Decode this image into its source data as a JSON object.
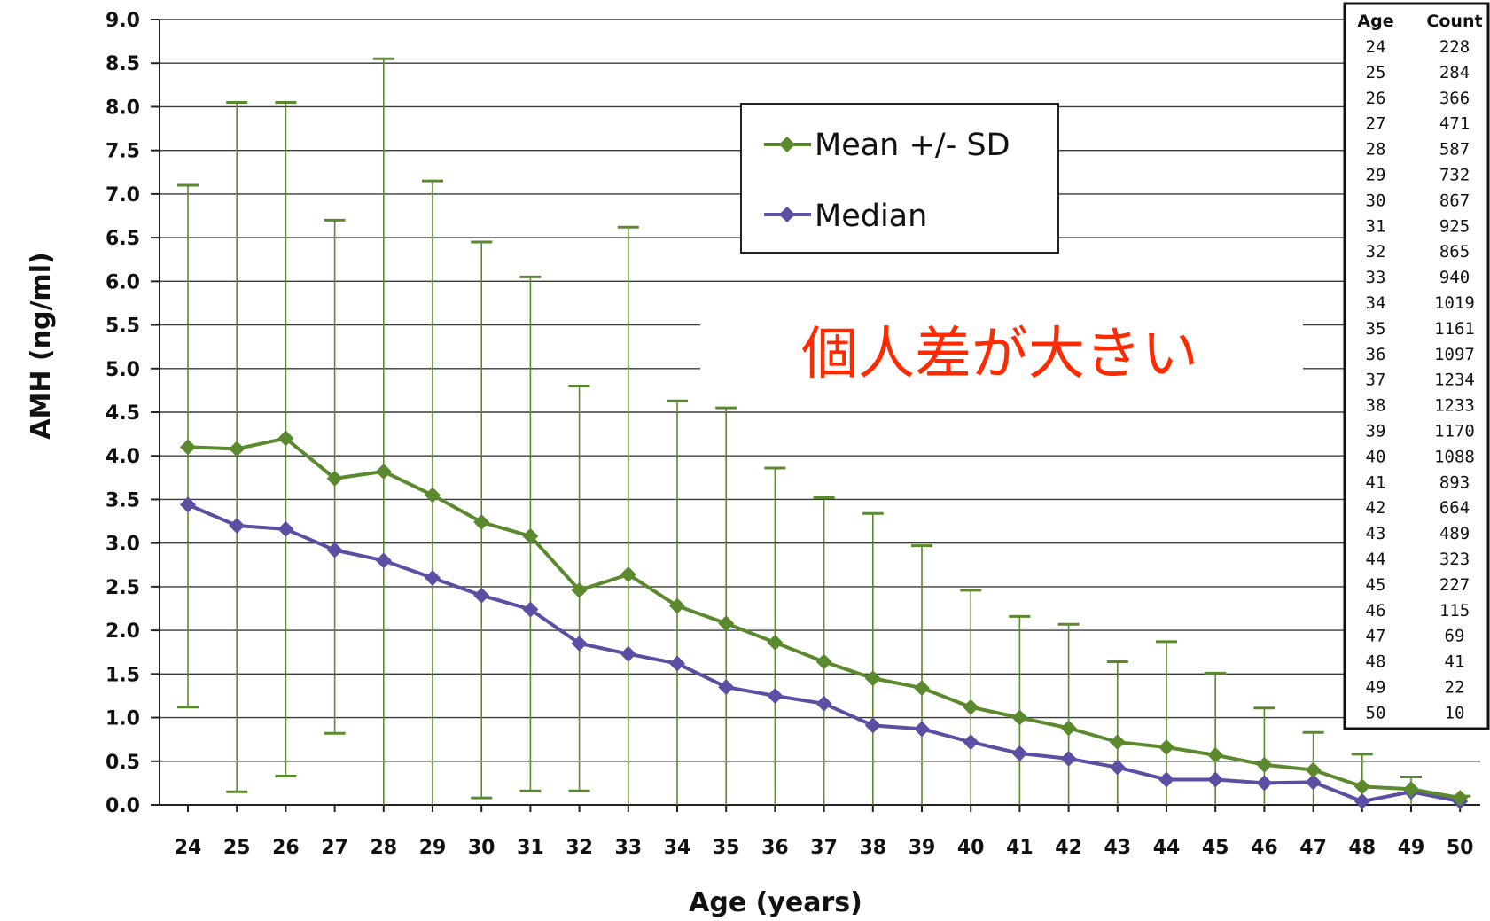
{
  "chart_data": {
    "type": "line",
    "xlabel": "Age (years)",
    "ylabel": "AMH (ng/ml)",
    "ylim": [
      0,
      9
    ],
    "y_ticks": [
      "0.0",
      "0.5",
      "1.0",
      "1.5",
      "2.0",
      "2.5",
      "3.0",
      "3.5",
      "4.0",
      "4.5",
      "5.0",
      "5.5",
      "6.0",
      "6.5",
      "7.0",
      "7.5",
      "8.0",
      "8.5",
      "9.0"
    ],
    "categories": [
      24,
      25,
      26,
      27,
      28,
      29,
      30,
      31,
      32,
      33,
      34,
      35,
      36,
      37,
      38,
      39,
      40,
      41,
      42,
      43,
      44,
      45,
      46,
      47,
      48,
      49,
      50
    ],
    "grid": true,
    "series": [
      {
        "name": "Mean +/- SD",
        "color": "#5b8a2e",
        "marker": "diamond",
        "values": [
          4.1,
          4.08,
          4.2,
          3.74,
          3.82,
          3.55,
          3.24,
          3.08,
          2.46,
          2.64,
          2.28,
          2.08,
          1.86,
          1.64,
          1.45,
          1.34,
          1.12,
          1.0,
          0.88,
          0.72,
          0.66,
          0.57,
          0.46,
          0.4,
          0.21,
          0.18,
          0.08
        ],
        "error_upper": [
          7.1,
          8.05,
          8.05,
          6.7,
          8.55,
          7.15,
          6.45,
          6.05,
          4.8,
          6.62,
          4.63,
          4.55,
          3.86,
          3.52,
          3.34,
          2.97,
          2.46,
          2.16,
          2.07,
          1.64,
          1.87,
          1.51,
          1.11,
          0.83,
          0.58,
          0.32,
          0.1
        ],
        "error_lower": [
          1.12,
          0.15,
          0.33,
          0.82,
          0.0,
          0.0,
          0.08,
          0.16,
          0.16,
          0.0,
          0.0,
          0.0,
          0.0,
          0.0,
          0.0,
          0.0,
          0.0,
          0.0,
          0.0,
          0.0,
          0.0,
          0.0,
          0.0,
          0.0,
          0.0,
          0.0,
          0.0
        ]
      },
      {
        "name": "Median",
        "color": "#5a4fa3",
        "marker": "diamond",
        "values": [
          3.44,
          3.2,
          3.16,
          2.92,
          2.8,
          2.6,
          2.4,
          2.24,
          1.85,
          1.73,
          1.62,
          1.35,
          1.25,
          1.16,
          0.91,
          0.87,
          0.72,
          0.59,
          0.53,
          0.43,
          0.29,
          0.29,
          0.25,
          0.26,
          0.04,
          0.15,
          0.04
        ]
      }
    ],
    "legend": {
      "position": "top-center"
    },
    "annotation": "個人差が大きい",
    "count_table": {
      "header": [
        "Age",
        "Count"
      ],
      "rows": [
        [
          "24",
          "228"
        ],
        [
          "25",
          "284"
        ],
        [
          "26",
          "366"
        ],
        [
          "27",
          "471"
        ],
        [
          "28",
          "587"
        ],
        [
          "29",
          "732"
        ],
        [
          "30",
          "867"
        ],
        [
          "31",
          "925"
        ],
        [
          "32",
          "865"
        ],
        [
          "33",
          "940"
        ],
        [
          "34",
          "1019"
        ],
        [
          "35",
          "1161"
        ],
        [
          "36",
          "1097"
        ],
        [
          "37",
          "1234"
        ],
        [
          "38",
          "1233"
        ],
        [
          "39",
          "1170"
        ],
        [
          "40",
          "1088"
        ],
        [
          "41",
          "893"
        ],
        [
          "42",
          "664"
        ],
        [
          "43",
          "489"
        ],
        [
          "44",
          "323"
        ],
        [
          "45",
          "227"
        ],
        [
          "46",
          "115"
        ],
        [
          "47",
          "69"
        ],
        [
          "48",
          "41"
        ],
        [
          "49",
          "22"
        ],
        [
          "50",
          "10"
        ]
      ]
    }
  }
}
